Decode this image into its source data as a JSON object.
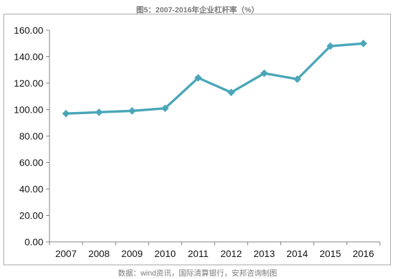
{
  "chart_data": {
    "type": "line",
    "title": "图5：2007-2016年企业杠杆率（%）",
    "x": [
      "2007",
      "2008",
      "2009",
      "2010",
      "2011",
      "2012",
      "2013",
      "2014",
      "2015",
      "2016"
    ],
    "series": [
      {
        "values": [
          97,
          98,
          99,
          101,
          124,
          113,
          127.5,
          123,
          148,
          150
        ]
      }
    ],
    "yticks": [
      "0.00",
      "20.00",
      "40.00",
      "60.00",
      "80.00",
      "100.00",
      "120.00",
      "140.00",
      "160.00"
    ],
    "ylim": [
      0,
      160
    ],
    "grid": false,
    "legend": "none",
    "line_color": "#4aa6b8",
    "source": "数据：wind资讯，国际清算银行，安邦咨询制图"
  }
}
